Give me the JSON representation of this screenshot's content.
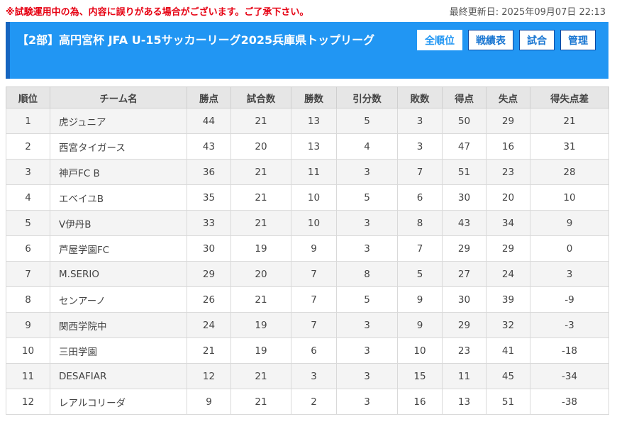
{
  "notice": "※試験運用中の為、内容に誤りがある場合がございます。ご了承下さい。",
  "last_updated": "最終更新日: 2025年09月07日 22:13",
  "header": {
    "title": "【2部】高円宮杯 JFA U-15サッカーリーグ2025兵庫県トップリーグ",
    "nav": [
      "全順位",
      "戦績表",
      "試合",
      "管理"
    ],
    "active_nav": "全順位"
  },
  "table": {
    "columns": [
      "順位",
      "チーム名",
      "勝点",
      "試合数",
      "勝数",
      "引分数",
      "敗数",
      "得点",
      "失点",
      "得失点差"
    ],
    "rows": [
      [
        "1",
        "虎ジュニア",
        "44",
        "21",
        "13",
        "5",
        "3",
        "50",
        "29",
        "21"
      ],
      [
        "2",
        "西宮タイガース",
        "43",
        "20",
        "13",
        "4",
        "3",
        "47",
        "16",
        "31"
      ],
      [
        "3",
        "神戸FC B",
        "36",
        "21",
        "11",
        "3",
        "7",
        "51",
        "23",
        "28"
      ],
      [
        "4",
        "エベイユB",
        "35",
        "21",
        "10",
        "5",
        "6",
        "30",
        "20",
        "10"
      ],
      [
        "5",
        "V伊丹B",
        "33",
        "21",
        "10",
        "3",
        "8",
        "43",
        "34",
        "9"
      ],
      [
        "6",
        "芦屋学園FC",
        "30",
        "19",
        "9",
        "3",
        "7",
        "29",
        "29",
        "0"
      ],
      [
        "7",
        "M.SERIO",
        "29",
        "20",
        "7",
        "8",
        "5",
        "27",
        "24",
        "3"
      ],
      [
        "8",
        "センアーノ",
        "26",
        "21",
        "7",
        "5",
        "9",
        "30",
        "39",
        "-9"
      ],
      [
        "9",
        "関西学院中",
        "24",
        "19",
        "7",
        "3",
        "9",
        "29",
        "32",
        "-3"
      ],
      [
        "10",
        "三田学園",
        "21",
        "19",
        "6",
        "3",
        "10",
        "23",
        "41",
        "-18"
      ],
      [
        "11",
        "DESAFIAR",
        "12",
        "21",
        "3",
        "3",
        "15",
        "11",
        "45",
        "-34"
      ],
      [
        "12",
        "レアルコリーダ",
        "9",
        "21",
        "2",
        "3",
        "16",
        "13",
        "51",
        "-38"
      ]
    ]
  },
  "colors": {
    "header_bg": "#2196f3",
    "header_accent": "#1565c0",
    "notice_text": "#e60012",
    "table_header_bg": "#e6e6e6",
    "row_stripe": "#f4f4f4"
  }
}
